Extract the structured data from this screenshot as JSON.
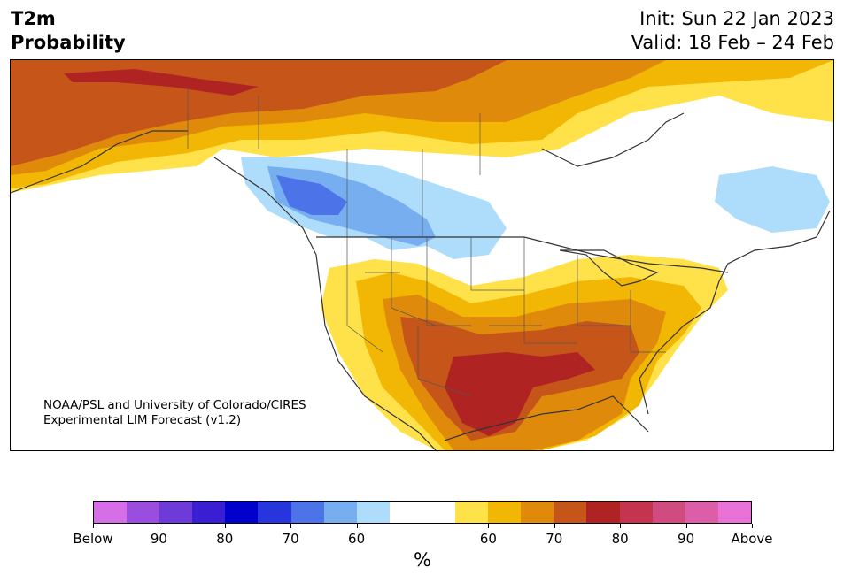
{
  "header": {
    "title_line1": "T2m",
    "title_line2": "Probability",
    "init": "Init: Sun 22 Jan 2023",
    "valid": "Valid: 18 Feb – 24 Feb"
  },
  "credit": {
    "line1": "NOAA/PSL and University of Colorado/CIRES",
    "line2": "Experimental LIM Forecast (v1.2)"
  },
  "legend": {
    "unit": "%",
    "colors": [
      "#d66ee8",
      "#9b4de0",
      "#6e3bd9",
      "#3a1fd2",
      "#0000cc",
      "#2736dc",
      "#4d73e8",
      "#76aef0",
      "#aedcfb",
      "#ffffff",
      "#ffffff",
      "#ffe24a",
      "#f2b705",
      "#e08a0b",
      "#c55519",
      "#b02323",
      "#c4344e",
      "#d04c80",
      "#dc5ea8",
      "#e872d8"
    ],
    "tick_labels": [
      "Below",
      "90",
      "80",
      "70",
      "60",
      "60",
      "70",
      "80",
      "90",
      "Above"
    ]
  },
  "palette": {
    "cold_60": "#aedcfb",
    "cold_70": "#76aef0",
    "cold_80": "#4d73e8",
    "warm_60": "#ffe24a",
    "warm_70": "#f2b705",
    "warm_80": "#e08a0b",
    "warm_90": "#c55519",
    "warm_top": "#b02323",
    "coast": "#333333"
  }
}
